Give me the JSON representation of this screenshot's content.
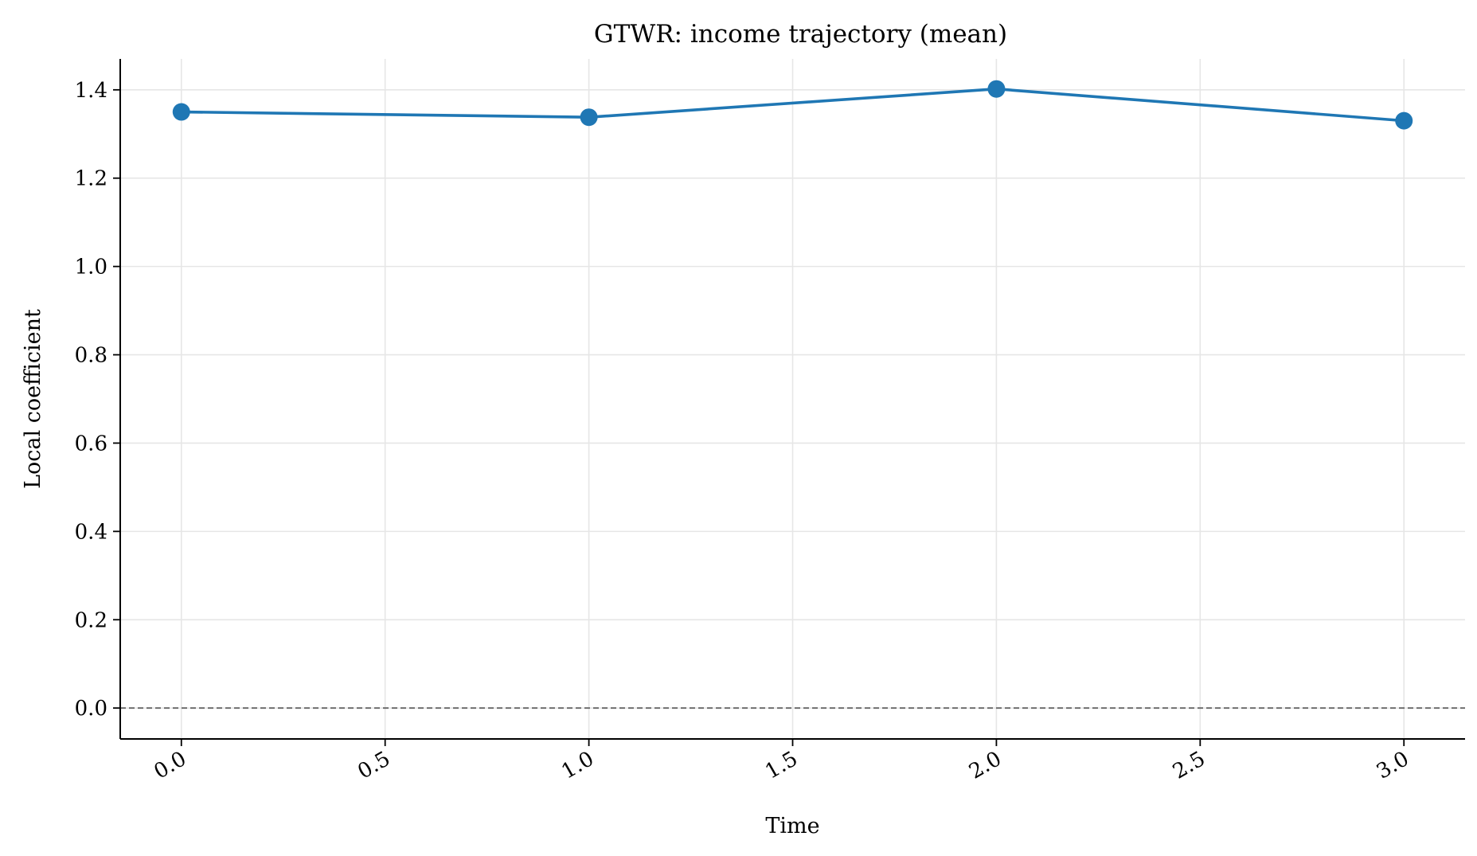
{
  "chart_data": {
    "type": "line",
    "title": "GTWR: income trajectory (mean)",
    "xlabel": "Time",
    "ylabel": "Local coefficient",
    "x": [
      0,
      1,
      2,
      3
    ],
    "series": [
      {
        "values": [
          1.35,
          1.338,
          1.402,
          1.33
        ]
      }
    ],
    "xlim": [
      -0.15,
      3.15
    ],
    "ylim": [
      -0.07,
      1.47
    ],
    "xticks": [
      0.0,
      0.5,
      1.0,
      1.5,
      2.0,
      2.5,
      3.0
    ],
    "xtick_labels": [
      "0.0",
      "0.5",
      "1.0",
      "1.5",
      "2.0",
      "2.5",
      "3.0"
    ],
    "yticks": [
      0.0,
      0.2,
      0.4,
      0.6,
      0.8,
      1.0,
      1.2,
      1.4
    ],
    "ytick_labels": [
      "0.0",
      "0.2",
      "0.4",
      "0.6",
      "0.8",
      "1.0",
      "1.2",
      "1.4"
    ],
    "reference_line": {
      "y": 0.0,
      "style": "dashed"
    },
    "grid": true,
    "legend": "none",
    "colors": {
      "series": "#1f77b4",
      "grid": "#e6e6e6",
      "reference": "#666666",
      "axis": "#000000"
    }
  }
}
